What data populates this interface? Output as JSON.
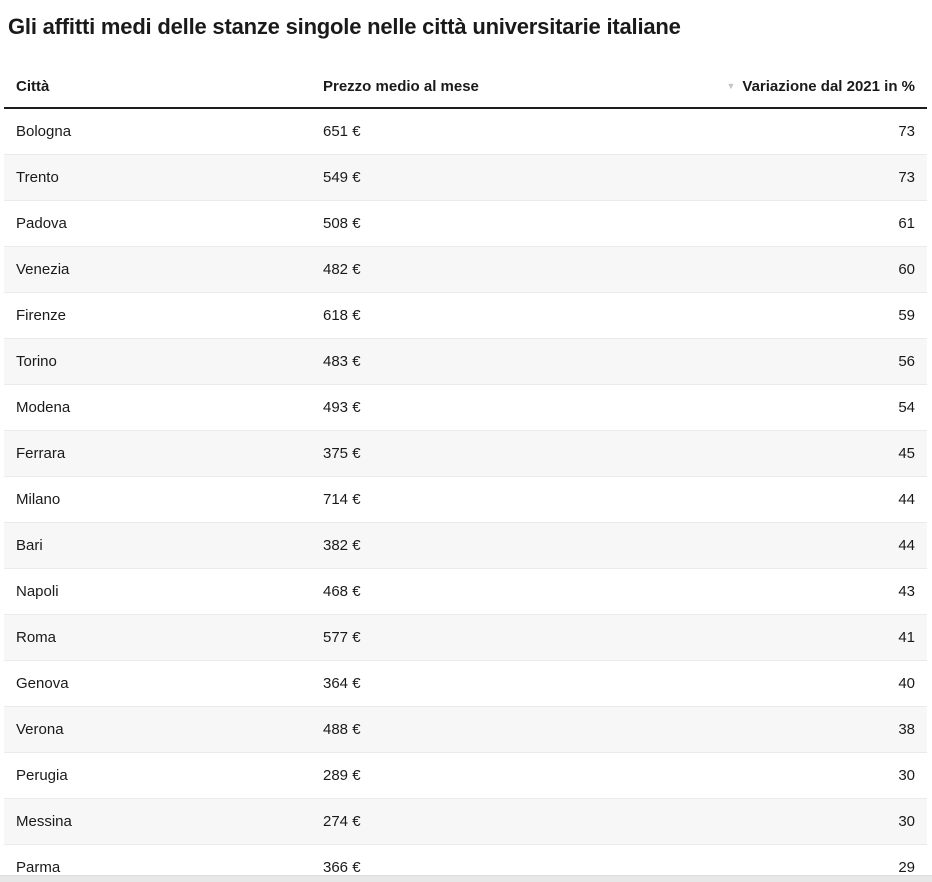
{
  "page": {
    "title": "Gli affitti medi delle stanze singole nelle città universitarie italiane"
  },
  "icons": {
    "sort_descending_glyph": "▼"
  },
  "colors": {
    "text": "#1a1a1a",
    "zebra_row": "#f7f7f7",
    "row_divider": "#ebebeb",
    "header_rule": "#1d1d1d",
    "sort_icon": "#c5c5c5",
    "bottom_bar": "#e7e7e7"
  },
  "table": {
    "columns": [
      {
        "label": "Città",
        "align": "left",
        "sortable": true
      },
      {
        "label": "Prezzo medio al mese",
        "align": "left",
        "sortable": true
      },
      {
        "label": "Variazione dal 2021 in %",
        "align": "right",
        "sortable": true,
        "sorted": "descending"
      }
    ],
    "rows": [
      {
        "city": "Bologna",
        "price": "651 €",
        "change": "73"
      },
      {
        "city": "Trento",
        "price": "549 €",
        "change": "73"
      },
      {
        "city": "Padova",
        "price": "508 €",
        "change": "61"
      },
      {
        "city": "Venezia",
        "price": "482 €",
        "change": "60"
      },
      {
        "city": "Firenze",
        "price": "618 €",
        "change": "59"
      },
      {
        "city": "Torino",
        "price": "483 €",
        "change": "56"
      },
      {
        "city": "Modena",
        "price": "493 €",
        "change": "54"
      },
      {
        "city": "Ferrara",
        "price": "375 €",
        "change": "45"
      },
      {
        "city": "Milano",
        "price": "714 €",
        "change": "44"
      },
      {
        "city": "Bari",
        "price": "382 €",
        "change": "44"
      },
      {
        "city": "Napoli",
        "price": "468 €",
        "change": "43"
      },
      {
        "city": "Roma",
        "price": "577 €",
        "change": "41"
      },
      {
        "city": "Genova",
        "price": "364 €",
        "change": "40"
      },
      {
        "city": "Verona",
        "price": "488 €",
        "change": "38"
      },
      {
        "city": "Perugia",
        "price": "289 €",
        "change": "30"
      },
      {
        "city": "Messina",
        "price": "274 €",
        "change": "30"
      },
      {
        "city": "Parma",
        "price": "366 €",
        "change": "29"
      }
    ]
  },
  "chart_data": {
    "type": "table",
    "title": "Gli affitti medi delle stanze singole nelle città universitarie italiane",
    "columns": [
      "Città",
      "Prezzo medio al mese (€)",
      "Variazione dal 2021 in %"
    ],
    "sort": {
      "column": "Variazione dal 2021 in %",
      "direction": "descending"
    },
    "rows": [
      {
        "citta": "Bologna",
        "prezzo_eur": 651,
        "variazione_pct": 73
      },
      {
        "citta": "Trento",
        "prezzo_eur": 549,
        "variazione_pct": 73
      },
      {
        "citta": "Padova",
        "prezzo_eur": 508,
        "variazione_pct": 61
      },
      {
        "citta": "Venezia",
        "prezzo_eur": 482,
        "variazione_pct": 60
      },
      {
        "citta": "Firenze",
        "prezzo_eur": 618,
        "variazione_pct": 59
      },
      {
        "citta": "Torino",
        "prezzo_eur": 483,
        "variazione_pct": 56
      },
      {
        "citta": "Modena",
        "prezzo_eur": 493,
        "variazione_pct": 54
      },
      {
        "citta": "Ferrara",
        "prezzo_eur": 375,
        "variazione_pct": 45
      },
      {
        "citta": "Milano",
        "prezzo_eur": 714,
        "variazione_pct": 44
      },
      {
        "citta": "Bari",
        "prezzo_eur": 382,
        "variazione_pct": 44
      },
      {
        "citta": "Napoli",
        "prezzo_eur": 468,
        "variazione_pct": 43
      },
      {
        "citta": "Roma",
        "prezzo_eur": 577,
        "variazione_pct": 41
      },
      {
        "citta": "Genova",
        "prezzo_eur": 364,
        "variazione_pct": 40
      },
      {
        "citta": "Verona",
        "prezzo_eur": 488,
        "variazione_pct": 38
      },
      {
        "citta": "Perugia",
        "prezzo_eur": 289,
        "variazione_pct": 30
      },
      {
        "citta": "Messina",
        "prezzo_eur": 274,
        "variazione_pct": 30
      },
      {
        "citta": "Parma",
        "prezzo_eur": 366,
        "variazione_pct": 29
      }
    ]
  }
}
